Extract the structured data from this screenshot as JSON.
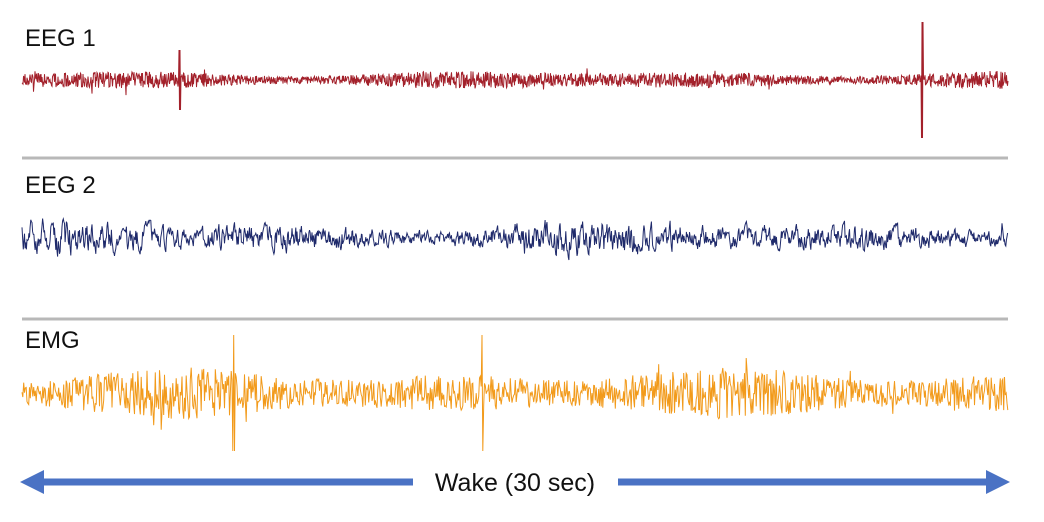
{
  "chart_data": {
    "type": "line",
    "description_stage": "Wake (30 sec)",
    "series": [
      {
        "name": "EEG 1",
        "color": "#a3212b",
        "amplitude_level": "low",
        "spikes": [
          {
            "position_fraction": 0.913,
            "level": "high"
          },
          {
            "position_fraction": 0.16,
            "level": "medium"
          }
        ]
      },
      {
        "name": "EEG 2",
        "color": "#1f2a6b",
        "amplitude_level": "medium",
        "spikes": []
      },
      {
        "name": "EMG",
        "color": "#f29a1a",
        "amplitude_level": "high",
        "spikes": [
          {
            "position_fraction": 0.467,
            "level": "high"
          },
          {
            "position_fraction": 0.215,
            "level": "high"
          }
        ]
      }
    ],
    "xlabel": "Wake (30 sec)",
    "duration_sec": 30,
    "grid": false
  },
  "arrow": {
    "label": "Wake (30 sec)",
    "color": "#4a72c4"
  },
  "divider_color": "#b8b8b8"
}
